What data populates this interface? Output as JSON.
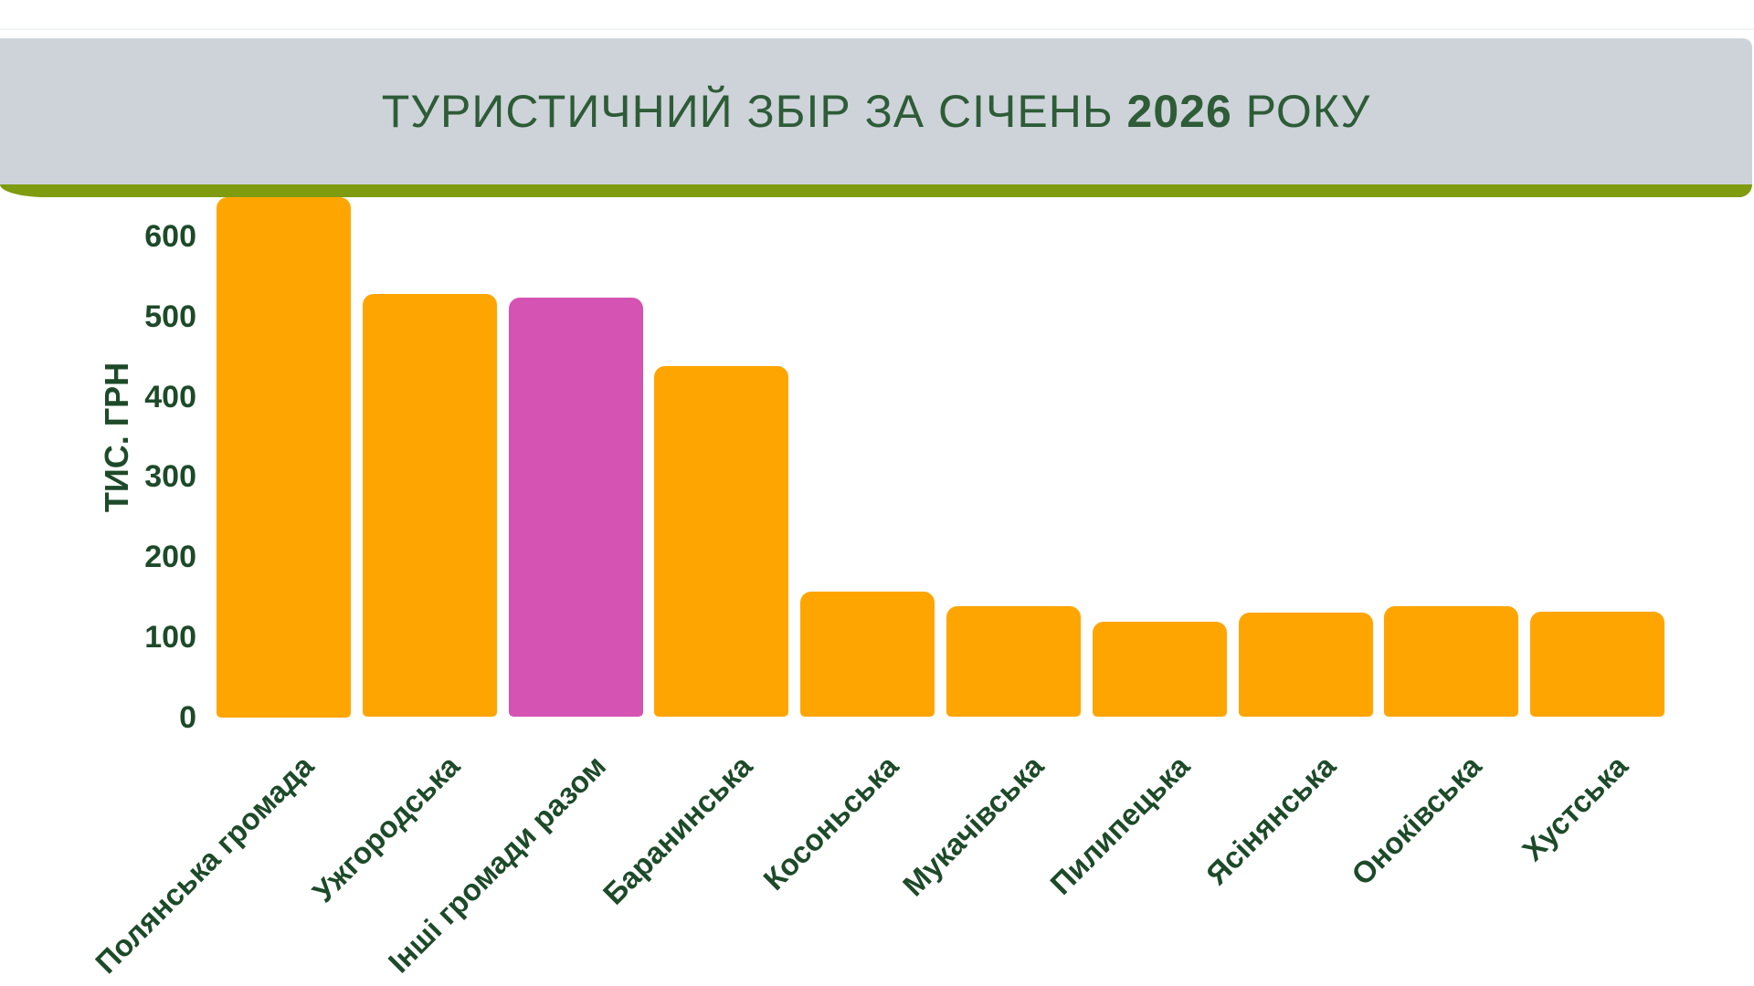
{
  "banner": {
    "title_prefix": "ТУРИСТИЧНИЙ ЗБІР ЗА СІЧЕНЬ ",
    "title_year": "2026",
    "title_suffix": " РОКУ"
  },
  "theme": {
    "banner_background": "#ced3da",
    "accent_strip_color": "#7f9c11",
    "title_color": "#2d5c36",
    "axis_text_color": "#1d4a29",
    "top_divider_color": "#eef4f7",
    "page_background": "#ffffff"
  },
  "chart_data": {
    "type": "bar",
    "title": "ТУРИСТИЧНИЙ ЗБІР ЗА СІЧЕНЬ 2026 РОКУ",
    "xlabel": "",
    "ylabel": "ТИС. ГРН",
    "ylim": [
      0,
      650
    ],
    "yticks": [
      0,
      100,
      200,
      300,
      400,
      500,
      600
    ],
    "grid": false,
    "legend": false,
    "categories": [
      "Полянська громада",
      "Ужгородська",
      "Інші громади разом",
      "Баранинська",
      "Косоньська",
      "Мукачівська",
      "Пилипецька",
      "Ясінянська",
      "Оноківська",
      "Хустська"
    ],
    "values": [
      650,
      528,
      524,
      438,
      157,
      139,
      119,
      130,
      138,
      132
    ],
    "bar_color_default": "#ffa502",
    "bar_color_highlight": "#d553b3",
    "highlight_index": 2
  }
}
